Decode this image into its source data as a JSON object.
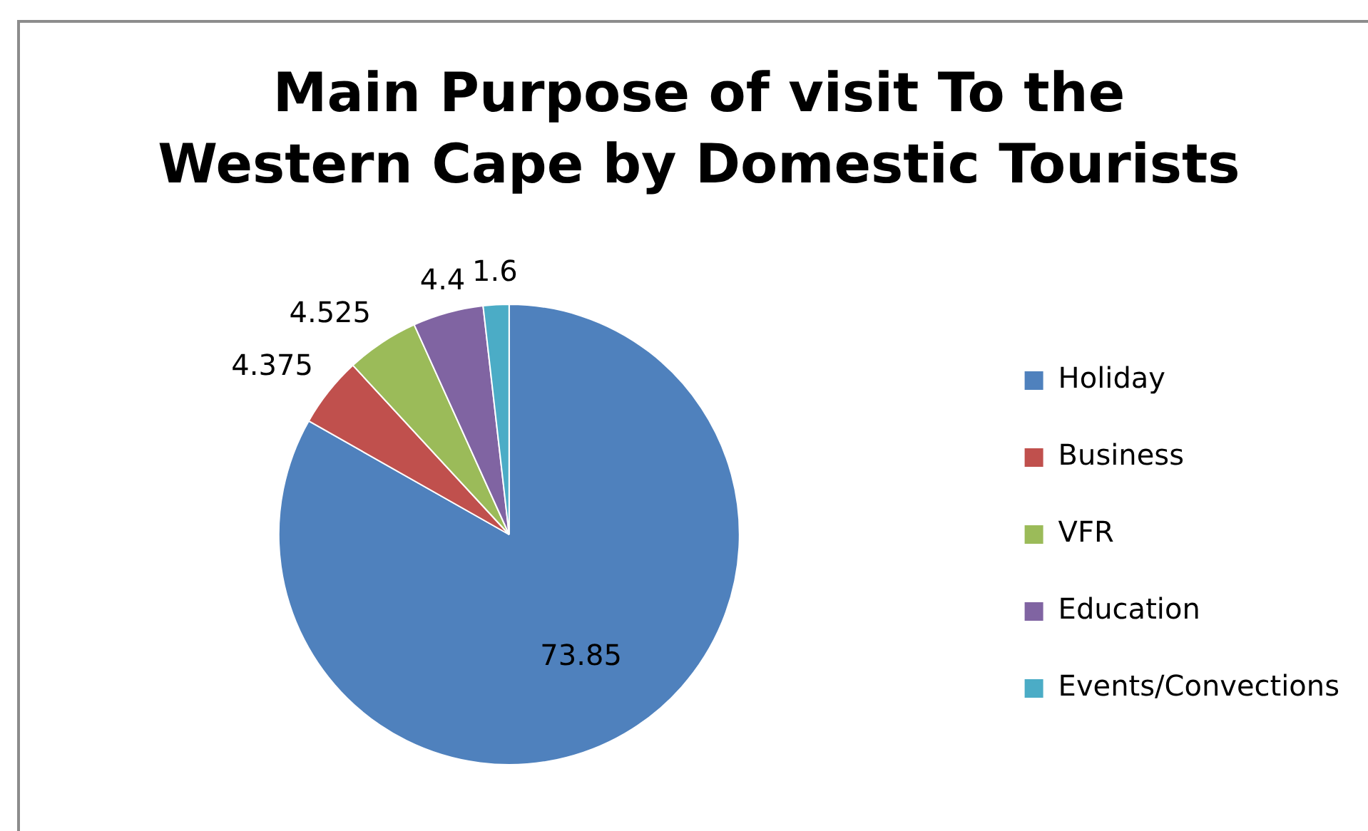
{
  "chart_data": {
    "type": "pie",
    "title": "Main Purpose of visit To the Western Cape by Domestic Tourists",
    "categories": [
      "Holiday",
      "Business",
      "VFR",
      "Education",
      "Events/Convections"
    ],
    "values": [
      73.85,
      4.375,
      4.525,
      4.4,
      1.6
    ],
    "colors": [
      "#4f81bd",
      "#c0504d",
      "#9bbb59",
      "#8064a2",
      "#4bacc6"
    ],
    "data_labels": true,
    "legend": "right"
  }
}
